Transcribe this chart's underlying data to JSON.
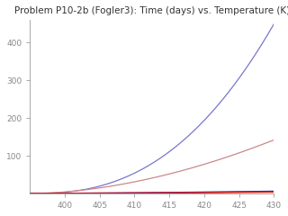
{
  "title": "Problem P10-2b (Fogler3): Time (days) vs. Temperature (K)",
  "T_start": 395,
  "T_end": 430,
  "xlim": [
    395,
    430
  ],
  "ylim": [
    0,
    460
  ],
  "yticks": [
    100,
    200,
    300,
    400
  ],
  "xticks": [
    400,
    405,
    410,
    415,
    420,
    425,
    430
  ],
  "background_color": "#ffffff",
  "curve1_color": "#7777cc",
  "curve2_color": "#cc8888",
  "curve3_color": "#2222bb",
  "curve4_color": "#cc2222",
  "title_fontsize": 7.5
}
